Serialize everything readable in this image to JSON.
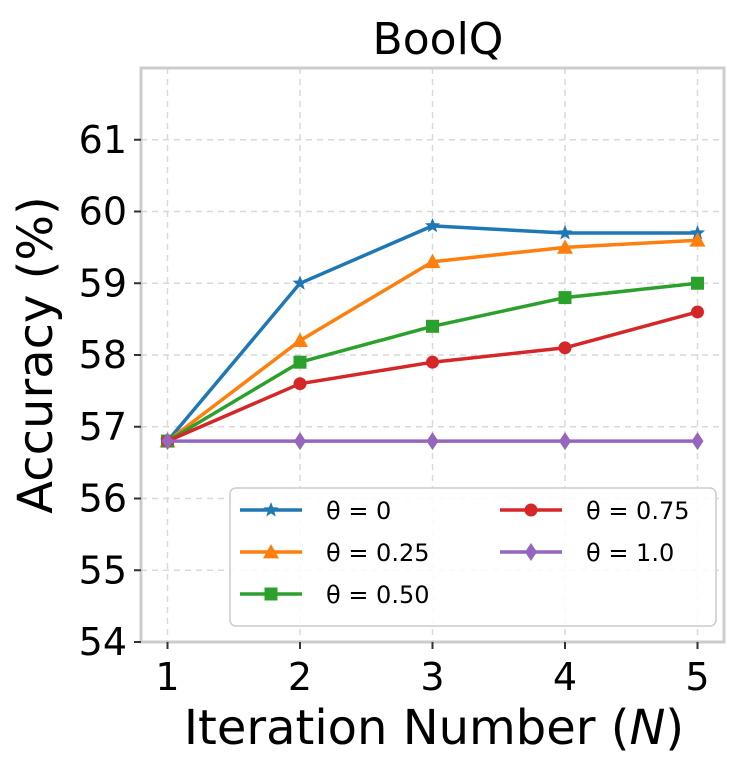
{
  "chart_data": {
    "type": "line",
    "title": "BoolQ",
    "xlabel": "Iteration Number",
    "xlabel_var": "N",
    "ylabel": "Accuracy (%)",
    "x": [
      1,
      2,
      3,
      4,
      5
    ],
    "xlim": [
      0.8,
      5.2
    ],
    "ylim": [
      54,
      62
    ],
    "yticks": [
      54,
      55,
      56,
      57,
      58,
      59,
      60,
      61
    ],
    "xticks": [
      1,
      2,
      3,
      4,
      5
    ],
    "grid": true,
    "legend_position": "lower-right",
    "series": [
      {
        "name": "θ = 0",
        "values": [
          56.8,
          59.0,
          59.8,
          59.7,
          59.7
        ],
        "color": "#1f77b4",
        "marker": "star"
      },
      {
        "name": "θ = 0.25",
        "values": [
          56.8,
          58.2,
          59.3,
          59.5,
          59.6
        ],
        "color": "#ff7f0e",
        "marker": "triangle"
      },
      {
        "name": "θ = 0.50",
        "values": [
          56.8,
          57.9,
          58.4,
          58.8,
          59.0
        ],
        "color": "#2ca02c",
        "marker": "square"
      },
      {
        "name": "θ = 0.75",
        "values": [
          56.8,
          57.6,
          57.9,
          58.1,
          58.6
        ],
        "color": "#d62728",
        "marker": "circle"
      },
      {
        "name": "θ = 1.0",
        "values": [
          56.8,
          56.8,
          56.8,
          56.8,
          56.8
        ],
        "color": "#9467bd",
        "marker": "diamond"
      }
    ]
  }
}
